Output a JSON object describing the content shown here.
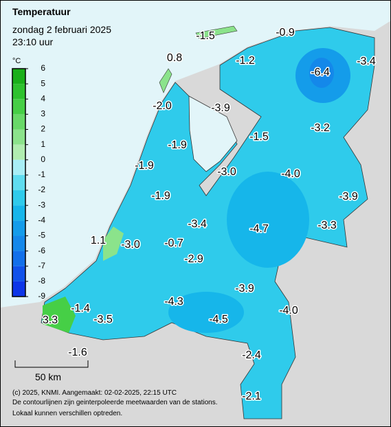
{
  "header": {
    "title": "Temperatuur",
    "date": "zondag 2 februari 2025",
    "time": "23:10 uur"
  },
  "legend": {
    "unit": "°C",
    "ticks": [
      6,
      5,
      4,
      3,
      2,
      1,
      0,
      -1,
      -2,
      -3,
      -4,
      -5,
      -6,
      -7,
      -8,
      -9
    ],
    "colors": [
      "#1ab01a",
      "#2ec22e",
      "#46cf46",
      "#68d968",
      "#8be38b",
      "#b0edb0",
      "#a8eef5",
      "#5fdcef",
      "#2fcbeb",
      "#16b6ea",
      "#149cea",
      "#1488ea",
      "#1270ea",
      "#1052ea",
      "#0d36e8"
    ]
  },
  "stations": [
    {
      "label": "-1.5"
    },
    {
      "label": "-0.9"
    },
    {
      "label": "0.8"
    },
    {
      "label": "-1.2"
    },
    {
      "label": "-6.4"
    },
    {
      "label": "-3.4"
    },
    {
      "label": "-2.0"
    },
    {
      "label": "-3.9"
    },
    {
      "label": "-3.2"
    },
    {
      "label": "-1.5"
    },
    {
      "label": "-1.9"
    },
    {
      "label": "-1.9"
    },
    {
      "label": "-3.0"
    },
    {
      "label": "-4.0"
    },
    {
      "label": "-3.9"
    },
    {
      "label": "-1.9"
    },
    {
      "label": "-3.4"
    },
    {
      "label": "-4.7"
    },
    {
      "label": "-3.3"
    },
    {
      "label": "1.1"
    },
    {
      "label": "-3.0"
    },
    {
      "label": "-0.7"
    },
    {
      "label": "-2.9"
    },
    {
      "label": "-3.9"
    },
    {
      "label": "-4.3"
    },
    {
      "label": "-1.4"
    },
    {
      "label": "-4.0"
    },
    {
      "label": "3.3"
    },
    {
      "label": "-3.5"
    },
    {
      "label": "-4.5"
    },
    {
      "label": "-2.4"
    },
    {
      "label": "-1.6"
    },
    {
      "label": "-2.1"
    }
  ],
  "scale": {
    "label": "50 km"
  },
  "footer": [
    "(c) 2025, KNMI. Aangemaakt: 02-02-2025, 22:15 UTC",
    "De contourlijnen zijn geinterpoleerde meetwaarden van de stations.",
    "Lokaal kunnen verschillen optreden."
  ]
}
